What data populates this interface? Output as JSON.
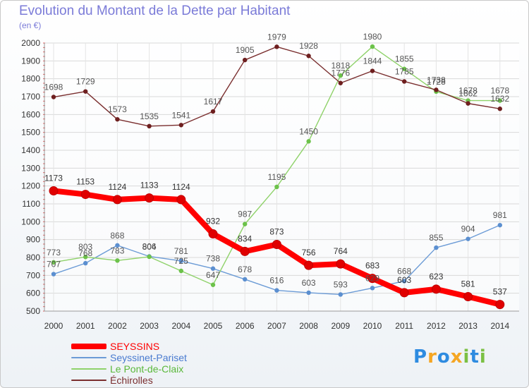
{
  "chart_data": {
    "type": "line",
    "title": "Evolution du Montant de la Dette par Habitant",
    "subtitle": "(en €)",
    "xlabel": "",
    "ylabel": "",
    "x": [
      "2000",
      "2001",
      "2002",
      "2003",
      "2004",
      "2005",
      "2006",
      "2007",
      "2008",
      "2009",
      "2010",
      "2011",
      "2012",
      "2013",
      "2014"
    ],
    "ylim": [
      500,
      2000
    ],
    "yticks": [
      500,
      600,
      700,
      800,
      900,
      1000,
      1100,
      1200,
      1300,
      1400,
      1500,
      1600,
      1700,
      1800,
      1900,
      2000
    ],
    "grid": true,
    "legend_position": "bottom-left",
    "series": [
      {
        "name": "SEYSSINS",
        "color": "#ff0000",
        "marker_color": "#e00000",
        "label_color": "#ff0000",
        "values": [
          1173,
          1153,
          1124,
          1133,
          1124,
          932,
          834,
          873,
          756,
          764,
          683,
          603,
          623,
          581,
          537
        ]
      },
      {
        "name": "Seyssinet-Pariset",
        "color": "#6b9bd6",
        "marker_color": "#5b8fd0",
        "label_color": "#4a7bd0",
        "values": [
          707,
          768,
          868,
          806,
          781,
          738,
          678,
          616,
          603,
          593,
          629,
          668,
          855,
          904,
          981
        ]
      },
      {
        "name": "Le Pont-de-Claix",
        "color": "#8fd26a",
        "marker_color": "#6cc24a",
        "label_color": "#5ab83a",
        "values": [
          773,
          803,
          783,
          804,
          725,
          647,
          987,
          1195,
          1450,
          1818,
          1980,
          1855,
          1728,
          1678,
          1678
        ]
      },
      {
        "name": "Échirolles",
        "color": "#7a2e2e",
        "marker_color": "#6e1f1f",
        "label_color": "#7a2e2e",
        "values": [
          1698,
          1729,
          1573,
          1535,
          1541,
          1617,
          1905,
          1979,
          1928,
          1776,
          1844,
          1785,
          1738,
          1662,
          1632
        ]
      }
    ]
  },
  "logo": {
    "letters": [
      {
        "char": "P",
        "color": "#2e8be0"
      },
      {
        "char": "r",
        "color": "#f5a623"
      },
      {
        "char": "o",
        "color": "#2e8be0"
      },
      {
        "char": "x",
        "color": "#f5a623"
      },
      {
        "char": "i",
        "color": "#7bc043"
      },
      {
        "char": "t",
        "color": "#2e8be0"
      },
      {
        "char": "i",
        "color": "#7bc043"
      }
    ]
  }
}
